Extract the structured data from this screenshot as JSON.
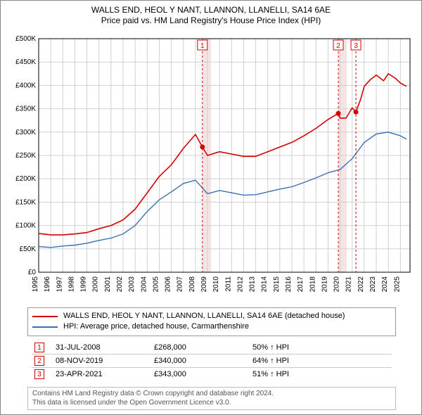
{
  "title_line1": "WALLS END, HEOL Y NANT, LLANNON, LLANELLI, SA14 6AE",
  "title_line2": "Price paid vs. HM Land Registry's House Price Index (HPI)",
  "chart": {
    "type": "line",
    "background": "#ffffff",
    "grid_color": "#d0d0d0",
    "axis_color": "#000000",
    "xlim": [
      1995,
      2025.8
    ],
    "ylim": [
      0,
      500000
    ],
    "ytick_step": 50000,
    "ytick_prefix": "£",
    "ytick_suffix_k": "K",
    "xtick_step": 1,
    "series": [
      {
        "name": "WALLS END, HEOL Y NANT, LLANNON, LLANELLI, SA14 6AE (detached house)",
        "color": "#d40000",
        "width": 1.6,
        "points": [
          [
            1995,
            83000
          ],
          [
            1996,
            80000
          ],
          [
            1997,
            80000
          ],
          [
            1998,
            82000
          ],
          [
            1999,
            85000
          ],
          [
            2000,
            93000
          ],
          [
            2001,
            100000
          ],
          [
            2002,
            112000
          ],
          [
            2003,
            135000
          ],
          [
            2004,
            170000
          ],
          [
            2005,
            205000
          ],
          [
            2006,
            230000
          ],
          [
            2007,
            265000
          ],
          [
            2008,
            295000
          ],
          [
            2008.58,
            268000
          ],
          [
            2009,
            250000
          ],
          [
            2010,
            258000
          ],
          [
            2011,
            253000
          ],
          [
            2012,
            248000
          ],
          [
            2013,
            248000
          ],
          [
            2014,
            258000
          ],
          [
            2015,
            268000
          ],
          [
            2016,
            278000
          ],
          [
            2017,
            292000
          ],
          [
            2018,
            308000
          ],
          [
            2019,
            327000
          ],
          [
            2019.85,
            340000
          ],
          [
            2020,
            330000
          ],
          [
            2020.5,
            330000
          ],
          [
            2021,
            352000
          ],
          [
            2021.31,
            343000
          ],
          [
            2021.7,
            370000
          ],
          [
            2022,
            398000
          ],
          [
            2022.5,
            412000
          ],
          [
            2023,
            422000
          ],
          [
            2023.6,
            410000
          ],
          [
            2024,
            425000
          ],
          [
            2024.6,
            415000
          ],
          [
            2025,
            405000
          ],
          [
            2025.5,
            398000
          ]
        ]
      },
      {
        "name": "HPI: Average price, detached house, Carmarthenshire",
        "color": "#3b6fb6",
        "width": 1.4,
        "points": [
          [
            1995,
            55000
          ],
          [
            1996,
            53000
          ],
          [
            1997,
            56000
          ],
          [
            1998,
            58000
          ],
          [
            1999,
            62000
          ],
          [
            2000,
            68000
          ],
          [
            2001,
            73000
          ],
          [
            2002,
            82000
          ],
          [
            2003,
            100000
          ],
          [
            2004,
            130000
          ],
          [
            2005,
            155000
          ],
          [
            2006,
            172000
          ],
          [
            2007,
            190000
          ],
          [
            2008,
            197000
          ],
          [
            2009,
            168000
          ],
          [
            2010,
            175000
          ],
          [
            2011,
            170000
          ],
          [
            2012,
            165000
          ],
          [
            2013,
            166000
          ],
          [
            2014,
            172000
          ],
          [
            2015,
            178000
          ],
          [
            2016,
            183000
          ],
          [
            2017,
            192000
          ],
          [
            2018,
            202000
          ],
          [
            2019,
            213000
          ],
          [
            2020,
            220000
          ],
          [
            2021,
            243000
          ],
          [
            2022,
            278000
          ],
          [
            2023,
            296000
          ],
          [
            2024,
            300000
          ],
          [
            2025,
            292000
          ],
          [
            2025.5,
            285000
          ]
        ]
      }
    ],
    "sale_markers": [
      {
        "label": "1",
        "x": 2008.58,
        "y": 268000,
        "shade_to": 2009.3
      },
      {
        "label": "2",
        "x": 2019.85,
        "y": 340000,
        "shade_to": 2020.55
      },
      {
        "label": "3",
        "x": 2021.31,
        "y": 343000
      }
    ],
    "marker_color": "#d40000",
    "marker_line_style": "dashed",
    "shade_fill": "#f5e4e4",
    "dot_color": "#d40000",
    "dot_radius": 3.5
  },
  "legend": {
    "items": [
      {
        "color": "#d40000",
        "label": "WALLS END, HEOL Y NANT, LLANNON, LLANELLI, SA14 6AE (detached house)"
      },
      {
        "color": "#3b6fb6",
        "label": "HPI: Average price, detached house, Carmarthenshire"
      }
    ]
  },
  "sales_table": {
    "rows": [
      {
        "marker": "1",
        "date": "31-JUL-2008",
        "price": "£268,000",
        "pct": "50% ↑ HPI"
      },
      {
        "marker": "2",
        "date": "08-NOV-2019",
        "price": "£340,000",
        "pct": "64% ↑ HPI"
      },
      {
        "marker": "3",
        "date": "23-APR-2021",
        "price": "£343,000",
        "pct": "51% ↑ HPI"
      }
    ]
  },
  "footer_line1": "Contains HM Land Registry data © Crown copyright and database right 2024.",
  "footer_line2": "This data is licensed under the Open Government Licence v3.0."
}
